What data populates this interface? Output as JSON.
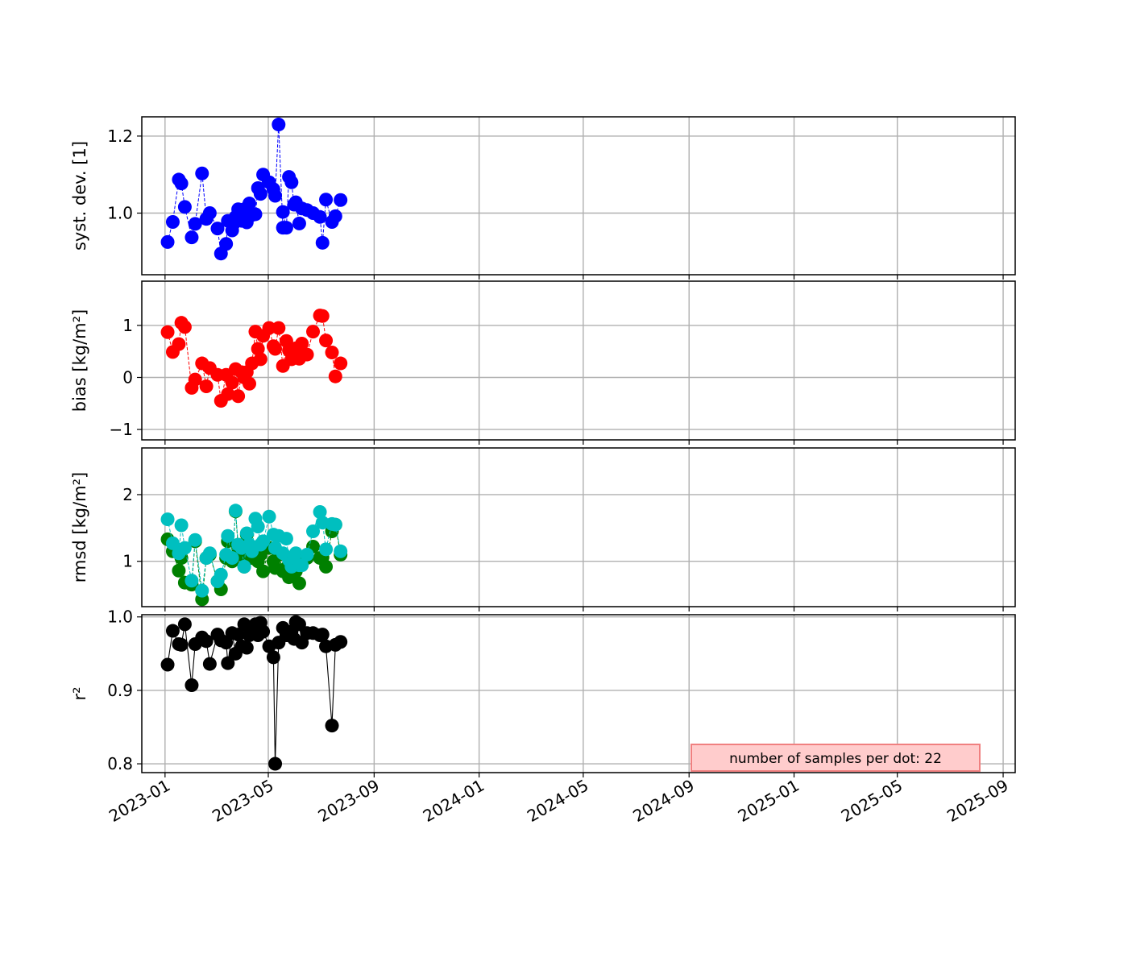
{
  "chart_data": [
    {
      "type": "line",
      "ylabel": "syst. dev. [1]",
      "ylim": [
        0.84,
        1.25
      ],
      "yticks": [
        1.0,
        1.2
      ],
      "yticklabels": [
        "1.0",
        "1.2"
      ],
      "marker_color": "#0000ff",
      "line_style": "dashed",
      "grid": true,
      "series": [
        {
          "x": [
            "2023-01-04",
            "2023-01-10",
            "2023-01-17",
            "2023-01-20",
            "2023-01-24",
            "2023-02-01",
            "2023-02-05",
            "2023-02-13",
            "2023-02-18",
            "2023-02-22",
            "2023-03-03",
            "2023-03-07",
            "2023-03-13",
            "2023-03-15",
            "2023-03-20",
            "2023-03-21",
            "2023-03-24",
            "2023-03-27",
            "2023-03-31",
            "2023-04-03",
            "2023-04-06",
            "2023-04-09",
            "2023-04-12",
            "2023-04-16",
            "2023-04-19",
            "2023-04-22",
            "2023-04-25",
            "2023-05-02",
            "2023-05-07",
            "2023-05-09",
            "2023-05-13",
            "2023-05-18",
            "2023-05-18",
            "2023-05-22",
            "2023-05-25",
            "2023-05-28",
            "2023-05-31",
            "2023-06-02",
            "2023-06-06",
            "2023-06-09",
            "2023-06-15",
            "2023-06-22",
            "2023-06-30",
            "2023-07-03",
            "2023-07-07",
            "2023-07-14",
            "2023-07-18",
            "2023-07-24"
          ],
          "y": [
            0.925,
            0.977,
            1.087,
            1.077,
            1.016,
            0.937,
            0.972,
            1.103,
            0.985,
            1.0,
            0.96,
            0.895,
            0.92,
            0.98,
            0.955,
            0.97,
            0.99,
            1.01,
            0.98,
            1.01,
            0.976,
            1.025,
            0.995,
            0.997,
            1.065,
            1.05,
            1.1,
            1.08,
            1.062,
            1.045,
            1.23,
            0.962,
            1.003,
            0.962,
            1.094,
            1.08,
            1.022,
            1.028,
            0.973,
            1.012,
            1.008,
            1.0,
            0.99,
            0.923,
            1.035,
            0.977,
            0.992,
            1.034
          ]
        }
      ]
    },
    {
      "type": "line",
      "ylabel": "bias [kg/m²]",
      "ylim": [
        -1.2,
        1.85
      ],
      "yticks": [
        -1,
        0,
        1
      ],
      "yticklabels": [
        "−1",
        "0",
        "1"
      ],
      "marker_color": "#ff0000",
      "line_style": "dashed",
      "grid": true,
      "series": [
        {
          "x": [
            "2023-01-04",
            "2023-01-10",
            "2023-01-17",
            "2023-01-20",
            "2023-01-24",
            "2023-02-01",
            "2023-02-05",
            "2023-02-13",
            "2023-02-18",
            "2023-02-22",
            "2023-03-03",
            "2023-03-07",
            "2023-03-13",
            "2023-03-15",
            "2023-03-20",
            "2023-03-24",
            "2023-03-27",
            "2023-03-31",
            "2023-04-03",
            "2023-04-06",
            "2023-04-09",
            "2023-04-12",
            "2023-04-16",
            "2023-04-19",
            "2023-04-22",
            "2023-04-25",
            "2023-05-02",
            "2023-05-07",
            "2023-05-09",
            "2023-05-13",
            "2023-05-18",
            "2023-05-22",
            "2023-05-25",
            "2023-05-28",
            "2023-05-31",
            "2023-06-02",
            "2023-06-06",
            "2023-06-09",
            "2023-06-15",
            "2023-06-22",
            "2023-06-30",
            "2023-07-03",
            "2023-07-07",
            "2023-07-14",
            "2023-07-18",
            "2023-07-24"
          ],
          "y": [
            0.87,
            0.49,
            0.64,
            1.05,
            0.97,
            -0.2,
            -0.04,
            0.27,
            -0.17,
            0.18,
            0.05,
            -0.45,
            0.05,
            -0.32,
            -0.1,
            0.16,
            -0.36,
            0.1,
            0.0,
            0.1,
            -0.12,
            0.27,
            0.88,
            0.55,
            0.35,
            0.8,
            0.95,
            0.6,
            0.55,
            0.95,
            0.22,
            0.7,
            0.52,
            0.35,
            0.5,
            0.56,
            0.36,
            0.65,
            0.44,
            0.88,
            1.19,
            1.18,
            0.71,
            0.48,
            0.02,
            0.27
          ]
        }
      ]
    },
    {
      "type": "line",
      "ylabel": "rmsd [kg/m²]",
      "ylim": [
        0.32,
        2.7
      ],
      "yticks": [
        1,
        2
      ],
      "yticklabels": [
        "1",
        "2"
      ],
      "grid": true,
      "series": [
        {
          "marker_color": "#008000",
          "x": [
            "2023-01-04",
            "2023-01-10",
            "2023-01-17",
            "2023-01-20",
            "2023-01-24",
            "2023-02-01",
            "2023-02-05",
            "2023-02-13",
            "2023-02-18",
            "2023-02-22",
            "2023-03-03",
            "2023-03-07",
            "2023-03-13",
            "2023-03-15",
            "2023-03-20",
            "2023-03-24",
            "2023-03-27",
            "2023-03-31",
            "2023-04-03",
            "2023-04-06",
            "2023-04-09",
            "2023-04-12",
            "2023-04-16",
            "2023-04-19",
            "2023-04-22",
            "2023-04-25",
            "2023-05-02",
            "2023-05-07",
            "2023-05-09",
            "2023-05-13",
            "2023-05-18",
            "2023-05-22",
            "2023-05-25",
            "2023-05-28",
            "2023-05-31",
            "2023-06-02",
            "2023-06-06",
            "2023-06-09",
            "2023-06-15",
            "2023-06-22",
            "2023-06-30",
            "2023-07-03",
            "2023-07-07",
            "2023-07-14",
            "2023-07-18",
            "2023-07-24"
          ],
          "y": [
            1.33,
            1.15,
            0.86,
            1.05,
            0.68,
            0.65,
            1.3,
            0.43,
            1.05,
            1.1,
            0.7,
            0.58,
            1.05,
            1.3,
            1.0,
            1.75,
            1.2,
            1.1,
            0.92,
            1.4,
            1.2,
            1.05,
            1.2,
            1.0,
            1.1,
            0.85,
            1.2,
            1.0,
            0.9,
            1.1,
            0.85,
            0.9,
            0.76,
            1.0,
            1.05,
            0.85,
            0.67,
            1.0,
            1.05,
            1.22,
            1.05,
            1.06,
            0.92,
            1.45,
            1.55,
            1.1
          ]
        },
        {
          "marker_color": "#00bfbf",
          "x": [
            "2023-01-04",
            "2023-01-10",
            "2023-01-17",
            "2023-01-20",
            "2023-01-24",
            "2023-02-01",
            "2023-02-05",
            "2023-02-13",
            "2023-02-18",
            "2023-02-22",
            "2023-03-03",
            "2023-03-07",
            "2023-03-13",
            "2023-03-15",
            "2023-03-20",
            "2023-03-24",
            "2023-03-27",
            "2023-03-31",
            "2023-04-03",
            "2023-04-06",
            "2023-04-09",
            "2023-04-12",
            "2023-04-16",
            "2023-04-19",
            "2023-04-22",
            "2023-04-25",
            "2023-05-02",
            "2023-05-07",
            "2023-05-09",
            "2023-05-13",
            "2023-05-18",
            "2023-05-22",
            "2023-05-25",
            "2023-05-28",
            "2023-05-31",
            "2023-06-02",
            "2023-06-06",
            "2023-06-09",
            "2023-06-15",
            "2023-06-22",
            "2023-06-30",
            "2023-07-03",
            "2023-07-07",
            "2023-07-14",
            "2023-07-18",
            "2023-07-24"
          ],
          "y": [
            1.63,
            1.27,
            1.12,
            1.54,
            1.2,
            0.71,
            1.32,
            0.56,
            1.05,
            1.12,
            0.7,
            0.8,
            1.1,
            1.38,
            1.05,
            1.76,
            1.25,
            1.2,
            0.92,
            1.42,
            1.25,
            1.15,
            1.64,
            1.52,
            1.25,
            1.3,
            1.67,
            1.4,
            1.2,
            1.38,
            1.12,
            1.34,
            1.02,
            0.92,
            1.06,
            1.12,
            0.94,
            0.94,
            1.1,
            1.45,
            1.74,
            1.58,
            1.18,
            1.56,
            1.55,
            1.15
          ]
        }
      ]
    },
    {
      "type": "line",
      "ylabel": "r²",
      "ylim": [
        0.788,
        1.003
      ],
      "yticks": [
        0.8,
        0.9,
        1.0
      ],
      "yticklabels": [
        "0.8",
        "0.9",
        "1.0"
      ],
      "marker_color": "#000000",
      "line_style": "solid",
      "grid": true,
      "series": [
        {
          "x": [
            "2023-01-04",
            "2023-01-10",
            "2023-01-17",
            "2023-01-20",
            "2023-01-24",
            "2023-02-01",
            "2023-02-05",
            "2023-02-13",
            "2023-02-18",
            "2023-02-22",
            "2023-03-03",
            "2023-03-07",
            "2023-03-13",
            "2023-03-15",
            "2023-03-20",
            "2023-03-24",
            "2023-03-27",
            "2023-03-31",
            "2023-04-03",
            "2023-04-06",
            "2023-04-09",
            "2023-04-12",
            "2023-04-16",
            "2023-04-19",
            "2023-04-22",
            "2023-04-25",
            "2023-05-02",
            "2023-05-07",
            "2023-05-09",
            "2023-05-13",
            "2023-05-18",
            "2023-05-22",
            "2023-05-25",
            "2023-05-28",
            "2023-05-31",
            "2023-06-02",
            "2023-06-06",
            "2023-06-09",
            "2023-06-15",
            "2023-06-22",
            "2023-06-30",
            "2023-07-03",
            "2023-07-07",
            "2023-07-14",
            "2023-07-18",
            "2023-07-24"
          ],
          "y": [
            0.935,
            0.981,
            0.963,
            0.962,
            0.99,
            0.907,
            0.963,
            0.972,
            0.967,
            0.936,
            0.976,
            0.968,
            0.965,
            0.937,
            0.978,
            0.95,
            0.976,
            0.96,
            0.99,
            0.958,
            0.975,
            0.98,
            0.99,
            0.975,
            0.992,
            0.98,
            0.96,
            0.945,
            0.8,
            0.965,
            0.985,
            0.975,
            0.975,
            0.98,
            0.97,
            0.993,
            0.99,
            0.965,
            0.978,
            0.978,
            0.975,
            0.976,
            0.96,
            0.852,
            0.962,
            0.966
          ]
        }
      ]
    }
  ],
  "x_axis": {
    "type": "date",
    "range": [
      "2022-12-05",
      "2025-09-15"
    ],
    "ticks": [
      "2023-01-01",
      "2023-05-01",
      "2023-09-01",
      "2024-01-01",
      "2024-05-01",
      "2024-09-01",
      "2025-01-01",
      "2025-05-01",
      "2025-09-01"
    ],
    "ticklabels": [
      "2023-01",
      "2023-05",
      "2023-09",
      "2024-01",
      "2024-05",
      "2024-09",
      "2025-01",
      "2025-05",
      "2025-09"
    ]
  },
  "annotation": {
    "text": "number of samples per dot: 22",
    "background": "#ffcccc",
    "border": "#f08080"
  }
}
